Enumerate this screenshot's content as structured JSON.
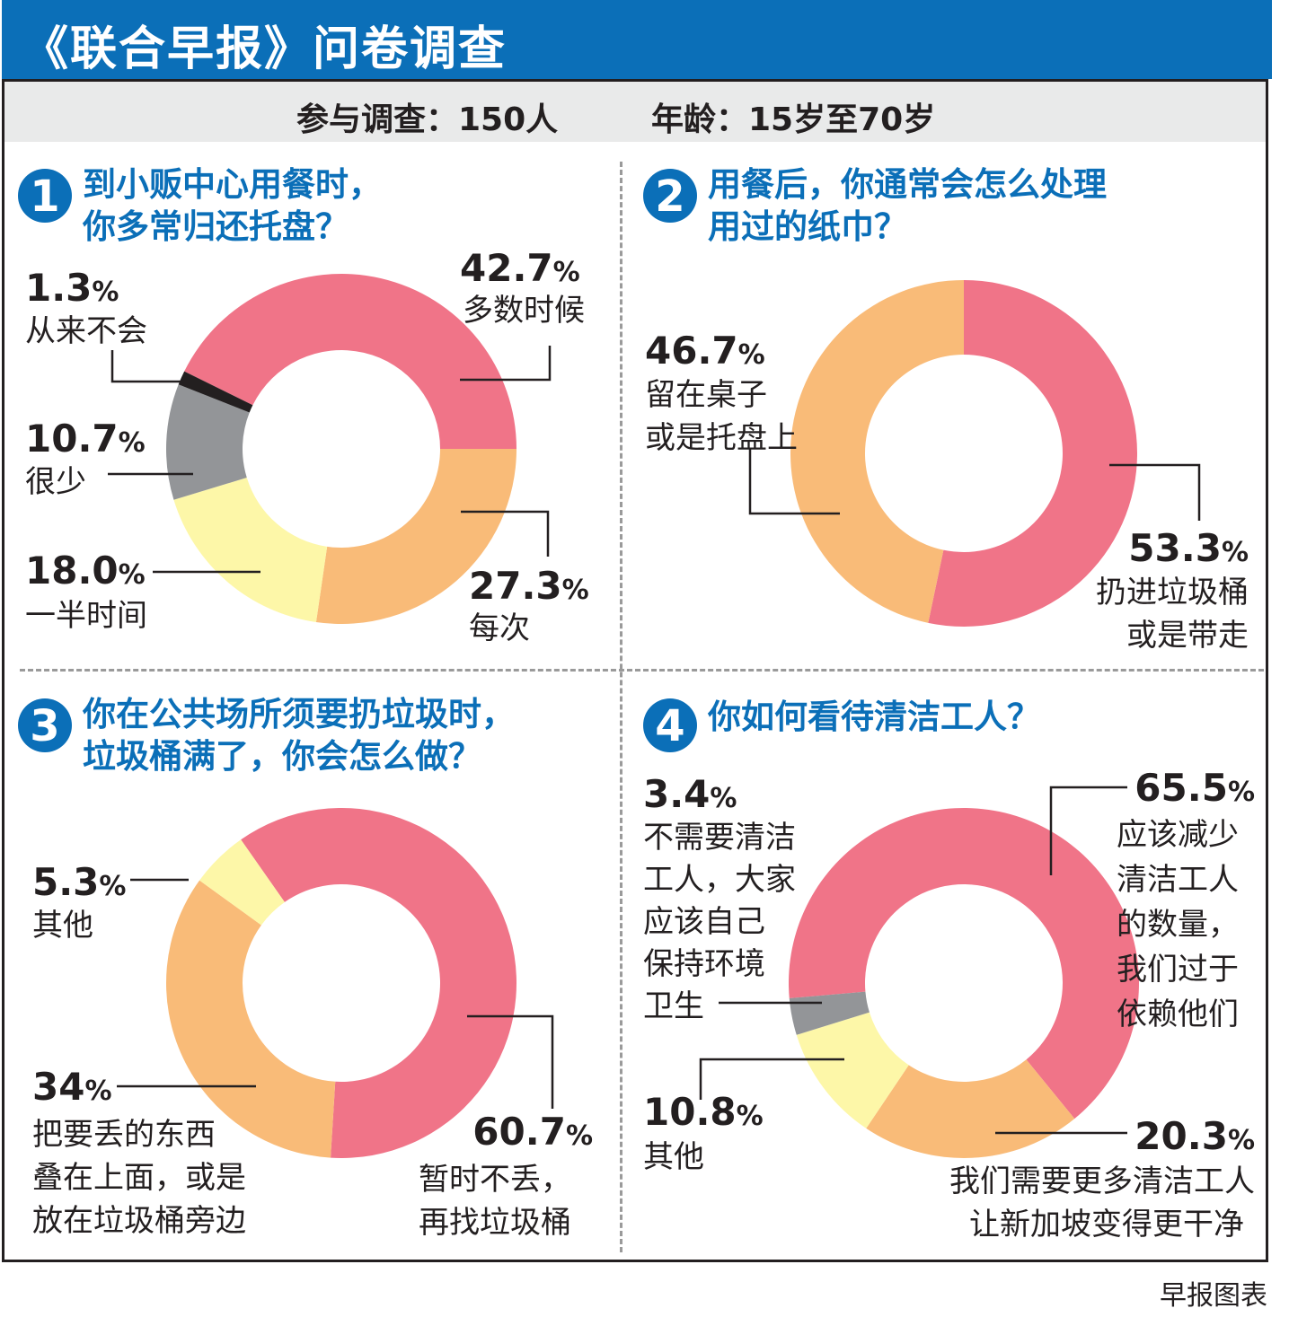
{
  "header": {
    "title": "《联合早报》问卷调查"
  },
  "survey": {
    "participants": "参与调查：150人",
    "age": "年龄：15岁至70岁"
  },
  "percent_sign": "%",
  "footer": "早报图表",
  "colors": {
    "header_blue": "#0b6fb8",
    "pink": "#f07488",
    "orange": "#f9bb78",
    "yellow": "#fdf7a8",
    "gray": "#939598",
    "black": "#231f20"
  },
  "chart_data": [
    {
      "type": "pie",
      "donut": true,
      "number": "1",
      "title": [
        "到小贩中心用餐时，",
        "你多常归还托盘？"
      ],
      "segments": [
        {
          "pct": "42.7",
          "value": 42.7,
          "label": [
            "多数时候"
          ],
          "color": "#f07488"
        },
        {
          "pct": "27.3",
          "value": 27.3,
          "label": [
            "每次"
          ],
          "color": "#f9bb78"
        },
        {
          "pct": "18.0",
          "value": 18.0,
          "label": [
            "一半时间"
          ],
          "color": "#fdf7a8"
        },
        {
          "pct": "10.7",
          "value": 10.7,
          "label": [
            "很少"
          ],
          "color": "#939598"
        },
        {
          "pct": "1.3",
          "value": 1.3,
          "label": [
            "从来不会"
          ],
          "color": "#231f20"
        }
      ]
    },
    {
      "type": "pie",
      "donut": true,
      "number": "2",
      "title": [
        "用餐后，你通常会怎么处理",
        "用过的纸巾？"
      ],
      "segments": [
        {
          "pct": "53.3",
          "value": 53.3,
          "label": [
            "扔进垃圾桶",
            "或是带走"
          ],
          "color": "#f07488"
        },
        {
          "pct": "46.7",
          "value": 46.7,
          "label": [
            "留在桌子",
            "或是托盘上"
          ],
          "color": "#f9bb78"
        }
      ]
    },
    {
      "type": "pie",
      "donut": true,
      "number": "3",
      "title": [
        "你在公共场所须要扔垃圾时，",
        "垃圾桶满了，你会怎么做？"
      ],
      "segments": [
        {
          "pct": "60.7",
          "value": 60.7,
          "label": [
            "暂时不丢，",
            "再找垃圾桶"
          ],
          "color": "#f07488"
        },
        {
          "pct": "34",
          "value": 34,
          "label": [
            "把要丢的东西",
            "叠在上面，或是",
            "放在垃圾桶旁边"
          ],
          "color": "#f9bb78"
        },
        {
          "pct": "5.3",
          "value": 5.3,
          "label": [
            "其他"
          ],
          "color": "#fdf7a8"
        }
      ]
    },
    {
      "type": "pie",
      "donut": true,
      "number": "4",
      "title": [
        "你如何看待清洁工人？"
      ],
      "segments": [
        {
          "pct": "65.5",
          "value": 65.5,
          "label": [
            "应该减少",
            "清洁工人",
            "的数量，",
            "我们过于",
            "依赖他们"
          ],
          "color": "#f07488"
        },
        {
          "pct": "20.3",
          "value": 20.3,
          "label": [
            "我们需要更多清洁工人",
            "让新加坡变得更干净"
          ],
          "color": "#f9bb78"
        },
        {
          "pct": "10.8",
          "value": 10.8,
          "label": [
            "其他"
          ],
          "color": "#fdf7a8"
        },
        {
          "pct": "3.4",
          "value": 3.4,
          "label": [
            "不需要清洁",
            "工人，大家",
            "应该自己",
            "保持环境",
            "卫生"
          ],
          "color": "#939598"
        }
      ]
    }
  ]
}
